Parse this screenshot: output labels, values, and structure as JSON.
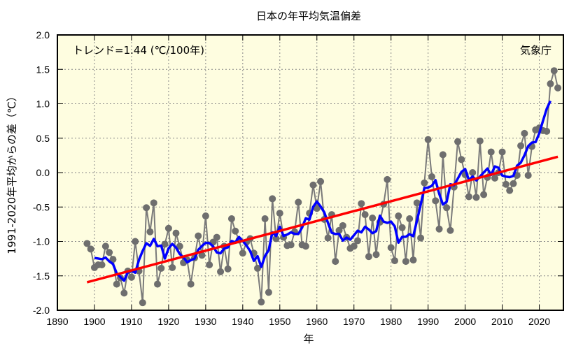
{
  "chart_data": {
    "type": "line",
    "title": "日本の年平均気温偏差",
    "xlabel": "年",
    "ylabel": "1991-2020年平均からの差（℃）",
    "xlim": [
      1890,
      2026.5
    ],
    "ylim": [
      -2.0,
      2.0
    ],
    "xticks": [
      1890,
      1900,
      1910,
      1920,
      1930,
      1940,
      1950,
      1960,
      1970,
      1980,
      1990,
      2000,
      2010,
      2020
    ],
    "yticks": [
      "2.0",
      "1.5",
      "1.0",
      "0.5",
      "0.0",
      "-0.5",
      "-1.0",
      "-1.5",
      "-2.0"
    ],
    "grid": true,
    "trend_label": "トレンド=1.44 (℃/100年)",
    "trend_per_century": 1.44,
    "source_label": "気象庁",
    "colors": {
      "annual": "#6e6e6e",
      "moving_average": "#0000ff",
      "trend": "#ff0000",
      "background": "#fefde0"
    },
    "series": {
      "x": [
        1898,
        1899,
        1900,
        1901,
        1902,
        1903,
        1904,
        1905,
        1906,
        1907,
        1908,
        1909,
        1910,
        1911,
        1912,
        1913,
        1914,
        1915,
        1916,
        1917,
        1918,
        1919,
        1920,
        1921,
        1922,
        1923,
        1924,
        1925,
        1926,
        1927,
        1928,
        1929,
        1930,
        1931,
        1932,
        1933,
        1934,
        1935,
        1936,
        1937,
        1938,
        1939,
        1940,
        1941,
        1942,
        1943,
        1944,
        1945,
        1946,
        1947,
        1948,
        1949,
        1950,
        1951,
        1952,
        1953,
        1954,
        1955,
        1956,
        1957,
        1958,
        1959,
        1960,
        1961,
        1962,
        1963,
        1964,
        1965,
        1966,
        1967,
        1968,
        1969,
        1970,
        1971,
        1972,
        1973,
        1974,
        1975,
        1976,
        1977,
        1978,
        1979,
        1980,
        1981,
        1982,
        1983,
        1984,
        1985,
        1986,
        1987,
        1988,
        1989,
        1990,
        1991,
        1992,
        1993,
        1994,
        1995,
        1996,
        1997,
        1998,
        1999,
        2000,
        2001,
        2002,
        2003,
        2004,
        2005,
        2006,
        2007,
        2008,
        2009,
        2010,
        2011,
        2012,
        2013,
        2014,
        2015,
        2016,
        2017,
        2018,
        2019,
        2020,
        2021,
        2022,
        2023,
        2024,
        2025
      ],
      "annual": [
        -1.03,
        -1.11,
        -1.38,
        -1.34,
        -1.34,
        -1.07,
        -1.16,
        -1.26,
        -1.62,
        -1.53,
        -1.75,
        -1.43,
        -1.52,
        -1.0,
        -1.43,
        -1.89,
        -0.51,
        -0.86,
        -0.44,
        -1.62,
        -1.39,
        -1.04,
        -0.81,
        -1.38,
        -0.88,
        -1.07,
        -1.31,
        -1.27,
        -1.62,
        -1.24,
        -0.92,
        -1.2,
        -0.63,
        -1.34,
        -1.01,
        -0.94,
        -1.44,
        -1.07,
        -1.4,
        -0.67,
        -0.85,
        -0.98,
        -1.17,
        -1.01,
        -0.96,
        -1.17,
        -1.39,
        -1.88,
        -0.67,
        -1.74,
        -0.38,
        -0.96,
        -0.59,
        -0.94,
        -1.06,
        -1.05,
        -0.86,
        -0.43,
        -1.05,
        -1.07,
        -0.59,
        -0.18,
        -0.52,
        -0.13,
        -0.68,
        -0.95,
        -0.61,
        -1.29,
        -0.84,
        -0.77,
        -0.94,
        -1.1,
        -1.07,
        -0.99,
        -0.45,
        -0.61,
        -1.22,
        -0.66,
        -1.19,
        -0.72,
        -0.46,
        -0.1,
        -1.09,
        -1.28,
        -0.63,
        -0.8,
        -1.29,
        -0.67,
        -1.27,
        -0.44,
        -0.95,
        -0.15,
        0.48,
        -0.06,
        -0.41,
        -0.82,
        0.26,
        -0.51,
        -0.84,
        -0.21,
        0.45,
        0.19,
        -0.03,
        -0.35,
        0.0,
        -0.36,
        0.46,
        -0.32,
        -0.07,
        0.3,
        -0.08,
        0.0,
        0.3,
        -0.17,
        -0.26,
        -0.16,
        -0.04,
        0.39,
        0.57,
        -0.04,
        0.38,
        0.62,
        0.65,
        0.61,
        0.6,
        1.29,
        1.48,
        1.23
      ]
    }
  }
}
